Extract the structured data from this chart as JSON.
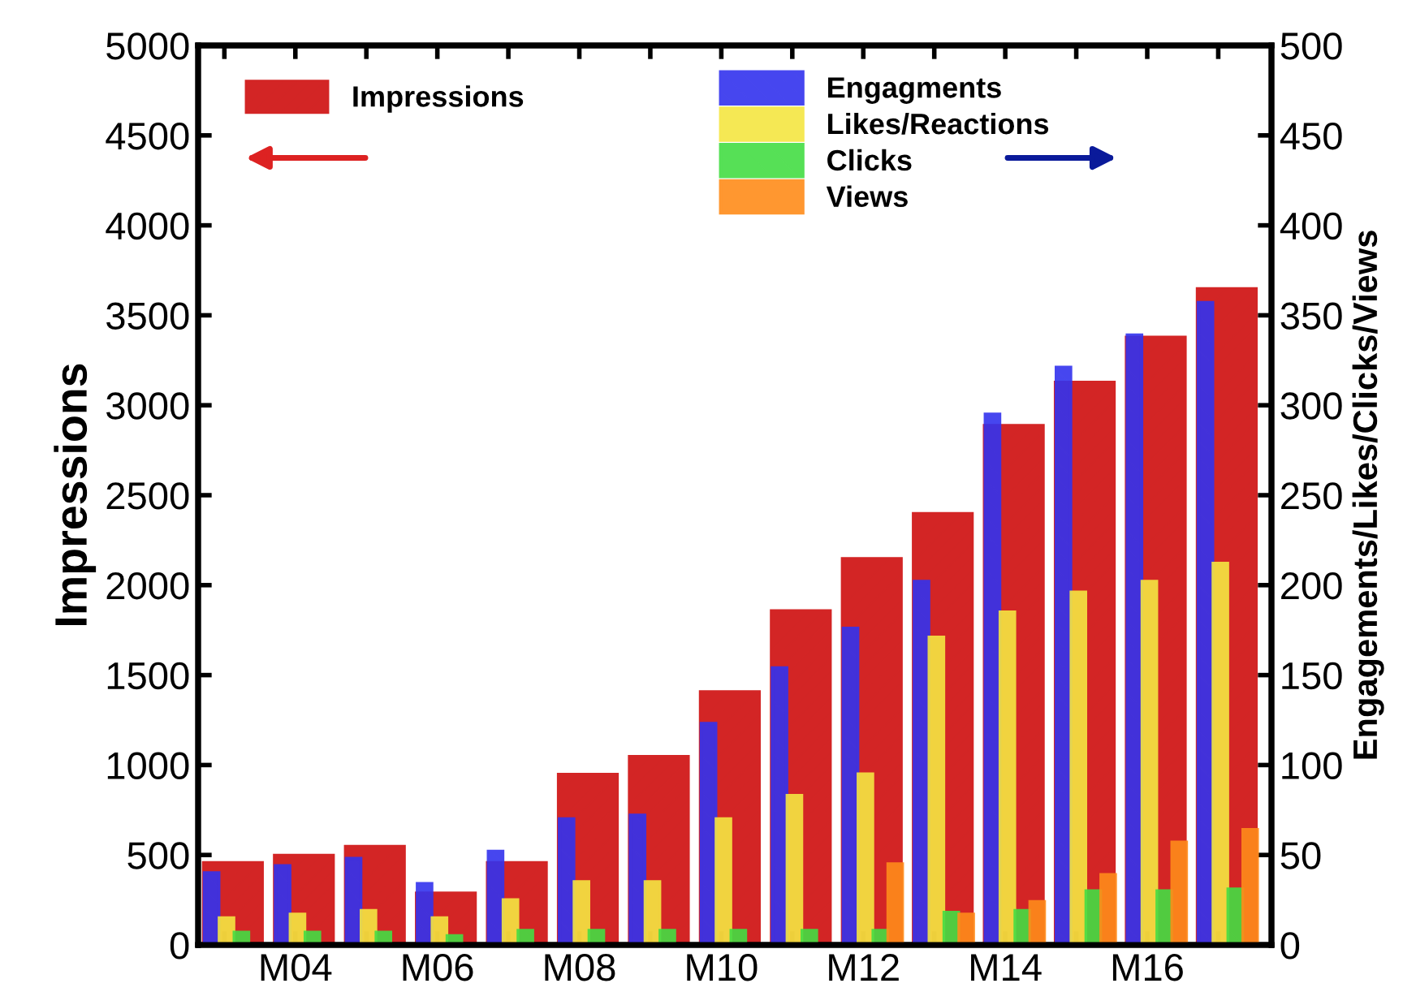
{
  "chart_data": {
    "type": "bar",
    "ylabel": "Impressions",
    "y2label": "Engagements/Likes/Clicks/Views",
    "categories": [
      null,
      "M04",
      null,
      "M06",
      null,
      "M08",
      null,
      "M10",
      null,
      "M12",
      null,
      "M14",
      null,
      "M16",
      null
    ],
    "series": [
      {
        "name": "Impressions",
        "color": "#cc0000",
        "values": [
          460,
          500,
          550,
          290,
          460,
          950,
          1050,
          1410,
          1860,
          2150,
          2400,
          2890,
          3130,
          3380,
          3650
        ]
      },
      {
        "name": "Engagments",
        "color": "#3333ee",
        "axis": "y2",
        "values": [
          40,
          44,
          48,
          34,
          52,
          70,
          72,
          123,
          154,
          176,
          202,
          295,
          321,
          339,
          357
        ]
      },
      {
        "name": "Likes/Reactions",
        "color": "#f5e642",
        "axis": "y2",
        "values": [
          15,
          17,
          19,
          15,
          25,
          35,
          35,
          70,
          83,
          95,
          171,
          185,
          196,
          202,
          212
        ]
      },
      {
        "name": "Clicks",
        "color": "#44dd44",
        "axis": "y2",
        "values": [
          7,
          7,
          7,
          5,
          8,
          8,
          8,
          8,
          8,
          8,
          18,
          19,
          30,
          30,
          31
        ]
      },
      {
        "name": "Views",
        "color": "#ff8c1a",
        "axis": "y2",
        "values": [
          0,
          0,
          0,
          0,
          0,
          0,
          0,
          0,
          0,
          45,
          17,
          24,
          39,
          57,
          64
        ]
      }
    ],
    "ylim": [
      0,
      5000
    ],
    "yticks": [
      0,
      500,
      1000,
      1500,
      2000,
      2500,
      3000,
      3500,
      4000,
      4500,
      5000
    ],
    "y2lim": [
      0,
      500
    ],
    "y2ticks": [
      0,
      50,
      100,
      150,
      200,
      250,
      300,
      350,
      400,
      450,
      500
    ],
    "grid": false,
    "legend": "top"
  }
}
